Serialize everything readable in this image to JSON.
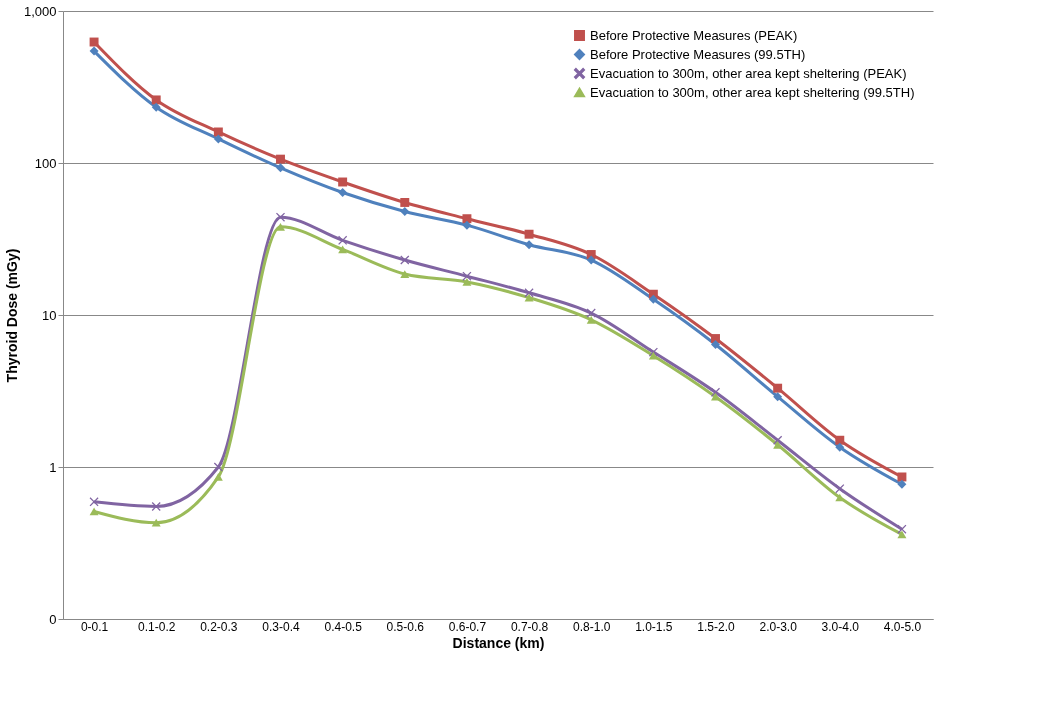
{
  "chart_data": {
    "type": "line",
    "xlabel": "Distance (km)",
    "ylabel": "Thyroid Dose (mGy)",
    "categories": [
      "0-0.1",
      "0.1-0.2",
      "0.2-0.3",
      "0.3-0.4",
      "0.4-0.5",
      "0.5-0.6",
      "0.6-0.7",
      "0.7-0.8",
      "0.8-1.0",
      "1.0-1.5",
      "1.5-2.0",
      "2.0-3.0",
      "3.0-4.0",
      "4.0-5.0"
    ],
    "series": [
      {
        "name": "Before Protective Measures (PEAK)",
        "color": "#c0504d",
        "marker": "square",
        "values": [
          625,
          260,
          160,
          106,
          75,
          55,
          43,
          34,
          25,
          13.7,
          7.0,
          3.3,
          1.5,
          0.86
        ]
      },
      {
        "name": "Before Protective Measures (99.5TH)",
        "color": "#4f81bd",
        "marker": "diamond",
        "values": [
          545,
          233,
          144,
          93,
          64,
          48,
          39,
          29,
          23,
          12.7,
          6.4,
          2.9,
          1.35,
          0.77
        ]
      },
      {
        "name": "Evacuation to 300m, other area kept sheltering (PEAK)",
        "color": "#8064a2",
        "marker": "cross",
        "values": [
          0.59,
          0.55,
          1.0,
          44,
          31,
          23,
          18,
          14,
          10.3,
          5.7,
          3.1,
          1.5,
          0.72,
          0.39
        ]
      },
      {
        "name": "Evacuation to 300m, other area kept sheltering (99.5TH)",
        "color": "#9bbb59",
        "marker": "triangle",
        "values": [
          0.51,
          0.43,
          0.86,
          38,
          27,
          18.6,
          16.5,
          13,
          9.3,
          5.4,
          2.9,
          1.4,
          0.63,
          0.36
        ]
      }
    ],
    "log": true,
    "ylim": [
      0.1,
      1000
    ],
    "yticks": [
      {
        "value": 0.1,
        "label": "0"
      },
      1,
      10,
      100,
      {
        "value": 1000,
        "label": "1,000"
      }
    ],
    "grid": "y",
    "legend": "top right",
    "line_style": "solid"
  }
}
